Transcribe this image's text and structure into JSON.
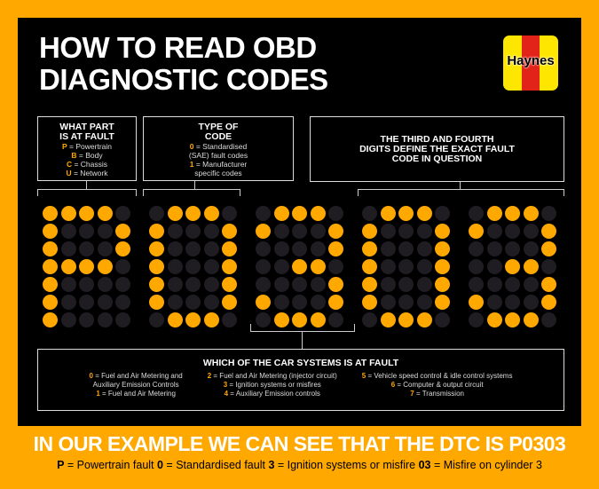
{
  "title_lines": [
    "HOW TO READ OBD",
    "DIAGNOSTIC CODES"
  ],
  "logo": {
    "text": "Haynes"
  },
  "colors": {
    "accent": "#FFA800",
    "background": "#000000",
    "dot_off": "#1F1D22"
  },
  "part_box": {
    "heading_lines": [
      "WHAT PART",
      "IS AT FAULT"
    ],
    "items": [
      {
        "key": "P",
        "text": " = Powertrain"
      },
      {
        "key": "B",
        "text": " = Body"
      },
      {
        "key": "C",
        "text": " = Chassis"
      },
      {
        "key": "U",
        "text": " = Network"
      }
    ]
  },
  "type_box": {
    "heading_lines": [
      "TYPE OF",
      "CODE"
    ],
    "items": [
      {
        "key": "0",
        "text": " = Standardised",
        "text2": "(SAE) fault codes"
      },
      {
        "key": "1",
        "text": " = Manufacturer",
        "text2": "specific codes"
      }
    ]
  },
  "digits_box": {
    "heading_lines": [
      "THE THIRD AND FOURTH",
      "DIGITS DEFINE THE EXACT FAULT",
      "CODE IN QUESTION"
    ]
  },
  "code_display": {
    "characters": [
      "P",
      "0",
      "3",
      "0",
      "3"
    ]
  },
  "system_box": {
    "heading": "WHICH OF THE CAR SYSTEMS IS AT FAULT",
    "columns": [
      [
        {
          "key": "0",
          "text": " = Fuel and Air Metering and"
        },
        {
          "key": "",
          "text": "Auxiliary Emission Controls"
        },
        {
          "key": "1",
          "text": " = Fuel and Air Metering"
        }
      ],
      [
        {
          "key": "2",
          "text": " = Fuel and Air Metering (injector circuit)"
        },
        {
          "key": "3",
          "text": " = Ignition systems or misfires"
        },
        {
          "key": "4",
          "text": " = Auxiliary Emission controls"
        }
      ],
      [
        {
          "key": "5",
          "text": " = Vehicle speed control &  idle control systems"
        },
        {
          "key": "6",
          "text": " = Computer & output circuit"
        },
        {
          "key": "7",
          "text": " = Transmission"
        }
      ]
    ]
  },
  "example": {
    "headline": "IN OUR EXAMPLE WE CAN SEE THAT THE DTC IS P0303",
    "parts": [
      {
        "key": "P",
        "text": " = Powertrain fault "
      },
      {
        "key": "0",
        "text": " = Standardised fault  "
      },
      {
        "key": "3",
        "text": " = Ignition systems or misfire  "
      },
      {
        "key": "03",
        "text": " = Misfire on cylinder 3"
      }
    ]
  }
}
